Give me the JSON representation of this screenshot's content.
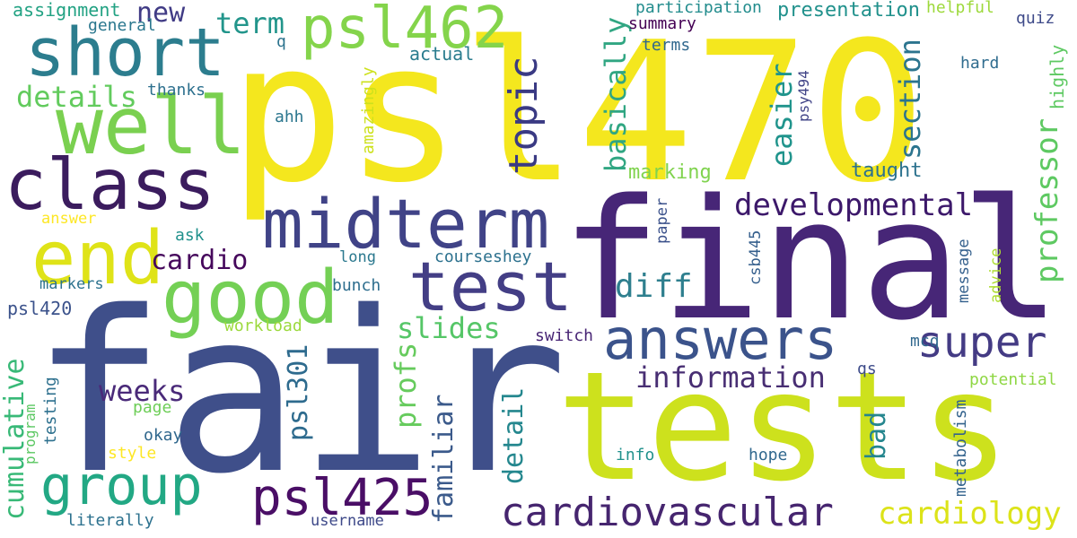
{
  "words": [
    {
      "text": "psl470",
      "color": "#f4e71e"
    },
    {
      "text": "final",
      "color": "#472677"
    },
    {
      "text": "fair",
      "color": "#3f4f8a"
    },
    {
      "text": "tests",
      "color": "#cde11d"
    },
    {
      "text": "short",
      "color": "#2c7d8e"
    },
    {
      "text": "psl462",
      "color": "#84d44b"
    },
    {
      "text": "well",
      "color": "#7ad050"
    },
    {
      "text": "class",
      "color": "#3b1c5e"
    },
    {
      "text": "midterm",
      "color": "#404387"
    },
    {
      "text": "end",
      "color": "#dfe318"
    },
    {
      "text": "good",
      "color": "#74d055"
    },
    {
      "text": "test",
      "color": "#433e85"
    },
    {
      "text": "answers",
      "color": "#3b538b"
    },
    {
      "text": "super",
      "color": "#443b84"
    },
    {
      "text": "group",
      "color": "#22a884"
    },
    {
      "text": "psl425",
      "color": "#4a0e66"
    },
    {
      "text": "cardiovascular",
      "color": "#46256f"
    },
    {
      "text": "cardiology",
      "color": "#dce319"
    },
    {
      "text": "developmental",
      "color": "#3c186a"
    },
    {
      "text": "information",
      "color": "#482e73"
    },
    {
      "text": "topic",
      "color": "#3a3a83"
    },
    {
      "text": "new",
      "color": "#403b85"
    },
    {
      "text": "term",
      "color": "#22958b"
    },
    {
      "text": "details",
      "color": "#62cb5d"
    },
    {
      "text": "cardio",
      "color": "#46085c"
    },
    {
      "text": "diff",
      "color": "#2e7f8e"
    },
    {
      "text": "slides",
      "color": "#55c667"
    },
    {
      "text": "weeks",
      "color": "#4a2a79"
    },
    {
      "text": "basically",
      "color": "#30a682"
    },
    {
      "text": "easier",
      "color": "#20948c"
    },
    {
      "text": "section",
      "color": "#2b748e"
    },
    {
      "text": "professor",
      "color": "#5ec962"
    },
    {
      "text": "cumulative",
      "color": "#38b977"
    },
    {
      "text": "profs",
      "color": "#66cb5d"
    },
    {
      "text": "psl301",
      "color": "#2e6b8e"
    },
    {
      "text": "familiar",
      "color": "#3b5a8b"
    },
    {
      "text": "detail",
      "color": "#24878e"
    },
    {
      "text": "bad",
      "color": "#25868e"
    },
    {
      "text": "marking",
      "color": "#80d34f"
    },
    {
      "text": "taught",
      "color": "#2c728e"
    },
    {
      "text": "assignment",
      "color": "#22a283"
    },
    {
      "text": "general",
      "color": "#2a778e"
    },
    {
      "text": "thanks",
      "color": "#2d708e"
    },
    {
      "text": "q",
      "color": "#2c738e"
    },
    {
      "text": "ahh",
      "color": "#2b768e"
    },
    {
      "text": "actual",
      "color": "#2a7c8e"
    },
    {
      "text": "amazingly",
      "color": "#cde11d"
    },
    {
      "text": "participation",
      "color": "#228c8d"
    },
    {
      "text": "presentation",
      "color": "#21918c"
    },
    {
      "text": "helpful",
      "color": "#9dd93b"
    },
    {
      "text": "summary",
      "color": "#440154"
    },
    {
      "text": "terms",
      "color": "#31688e"
    },
    {
      "text": "quiz",
      "color": "#3e4a89"
    },
    {
      "text": "hard",
      "color": "#2f6c8e"
    },
    {
      "text": "highly",
      "color": "#5ec962"
    },
    {
      "text": "psy494",
      "color": "#414487"
    },
    {
      "text": "answer",
      "color": "#fde725"
    },
    {
      "text": "ask",
      "color": "#21918c"
    },
    {
      "text": "long",
      "color": "#2a788e"
    },
    {
      "text": "courseshey",
      "color": "#2c718e"
    },
    {
      "text": "bunch",
      "color": "#2e6e8e"
    },
    {
      "text": "markers",
      "color": "#2c728e"
    },
    {
      "text": "paper",
      "color": "#3b518b"
    },
    {
      "text": "csb445",
      "color": "#355f8d"
    },
    {
      "text": "message",
      "color": "#34608d"
    },
    {
      "text": "advice",
      "color": "#addc30"
    },
    {
      "text": "psl420",
      "color": "#3b528b"
    },
    {
      "text": "workload",
      "color": "#9bd93c"
    },
    {
      "text": "switch",
      "color": "#482575"
    },
    {
      "text": "mcq",
      "color": "#31688e"
    },
    {
      "text": "qs",
      "color": "#3e4c8a"
    },
    {
      "text": "potential",
      "color": "#8fd744"
    },
    {
      "text": "metabolism",
      "color": "#33638d"
    },
    {
      "text": "testing",
      "color": "#2d708e"
    },
    {
      "text": "program",
      "color": "#5cc863"
    },
    {
      "text": "page",
      "color": "#6ece58"
    },
    {
      "text": "okay",
      "color": "#30678d"
    },
    {
      "text": "style",
      "color": "#fde725"
    },
    {
      "text": "info",
      "color": "#21918c"
    },
    {
      "text": "hope",
      "color": "#31688e"
    },
    {
      "text": "literally",
      "color": "#2c718e"
    },
    {
      "text": "username",
      "color": "#3e4989"
    }
  ]
}
